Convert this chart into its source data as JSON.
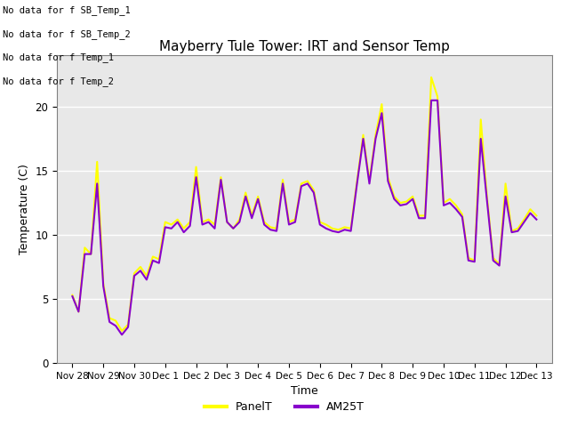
{
  "title": "Mayberry Tule Tower: IRT and Sensor Temp",
  "xlabel": "Time",
  "ylabel": "Temperature (C)",
  "ylim": [
    0,
    24
  ],
  "background_color": "#e8e8e8",
  "fig_background": "#ffffff",
  "panel_color": "#ffff00",
  "am25_color": "#8800cc",
  "no_data_texts": [
    "No data for f SB_Temp_1",
    "No data for f SB_Temp_2",
    "No data for f Temp_1",
    "No data for f Temp_2"
  ],
  "legend_labels": [
    "PanelT",
    "AM25T"
  ],
  "xtick_labels": [
    "Nov 28",
    "Nov 29",
    "Nov 30",
    "Dec 1",
    "Dec 2",
    "Dec 3",
    "Dec 4",
    "Dec 5",
    "Dec 6",
    "Dec 7",
    "Dec 8",
    "Dec 9",
    "Dec 10",
    "Dec 11",
    "Dec 12",
    "Dec 13"
  ],
  "xtick_positions": [
    0,
    1,
    2,
    3,
    4,
    5,
    6,
    7,
    8,
    9,
    10,
    11,
    12,
    13,
    14,
    15
  ],
  "panel_data": [
    5.3,
    4.0,
    9.0,
    8.5,
    15.7,
    6.2,
    3.5,
    3.3,
    2.5,
    3.0,
    7.0,
    7.5,
    6.8,
    8.3,
    8.1,
    11.0,
    10.8,
    11.2,
    10.5,
    11.0,
    15.3,
    11.0,
    11.2,
    10.8,
    14.5,
    11.0,
    10.5,
    11.2,
    13.3,
    11.5,
    13.0,
    11.0,
    10.6,
    10.5,
    14.3,
    11.0,
    11.2,
    14.0,
    14.2,
    13.5,
    11.0,
    10.8,
    10.5,
    10.4,
    10.6,
    10.5,
    14.2,
    17.8,
    14.2,
    17.8,
    20.2,
    14.5,
    13.0,
    12.5,
    12.6,
    13.0,
    11.5,
    11.5,
    22.3,
    20.8,
    12.5,
    12.8,
    12.3,
    11.6,
    8.2,
    8.0,
    19.0,
    13.0,
    8.2,
    7.7,
    14.0,
    10.3,
    10.5,
    11.2,
    12.0,
    11.5
  ],
  "am25_data": [
    5.2,
    4.0,
    8.5,
    8.5,
    14.0,
    6.0,
    3.2,
    2.9,
    2.2,
    2.8,
    6.8,
    7.2,
    6.5,
    8.0,
    7.8,
    10.6,
    10.5,
    11.0,
    10.2,
    10.7,
    14.5,
    10.8,
    11.0,
    10.5,
    14.3,
    11.0,
    10.5,
    11.0,
    13.0,
    11.3,
    12.8,
    10.8,
    10.4,
    10.3,
    14.0,
    10.8,
    11.0,
    13.8,
    14.0,
    13.3,
    10.8,
    10.5,
    10.3,
    10.2,
    10.4,
    10.3,
    14.0,
    17.5,
    14.0,
    17.5,
    19.5,
    14.2,
    12.8,
    12.3,
    12.4,
    12.8,
    11.3,
    11.3,
    20.5,
    20.5,
    12.3,
    12.5,
    12.0,
    11.4,
    8.0,
    7.9,
    17.5,
    12.7,
    8.0,
    7.6,
    13.0,
    10.2,
    10.3,
    11.0,
    11.7,
    11.2
  ],
  "n_points": 76,
  "xlim": [
    -0.5,
    15.5
  ]
}
